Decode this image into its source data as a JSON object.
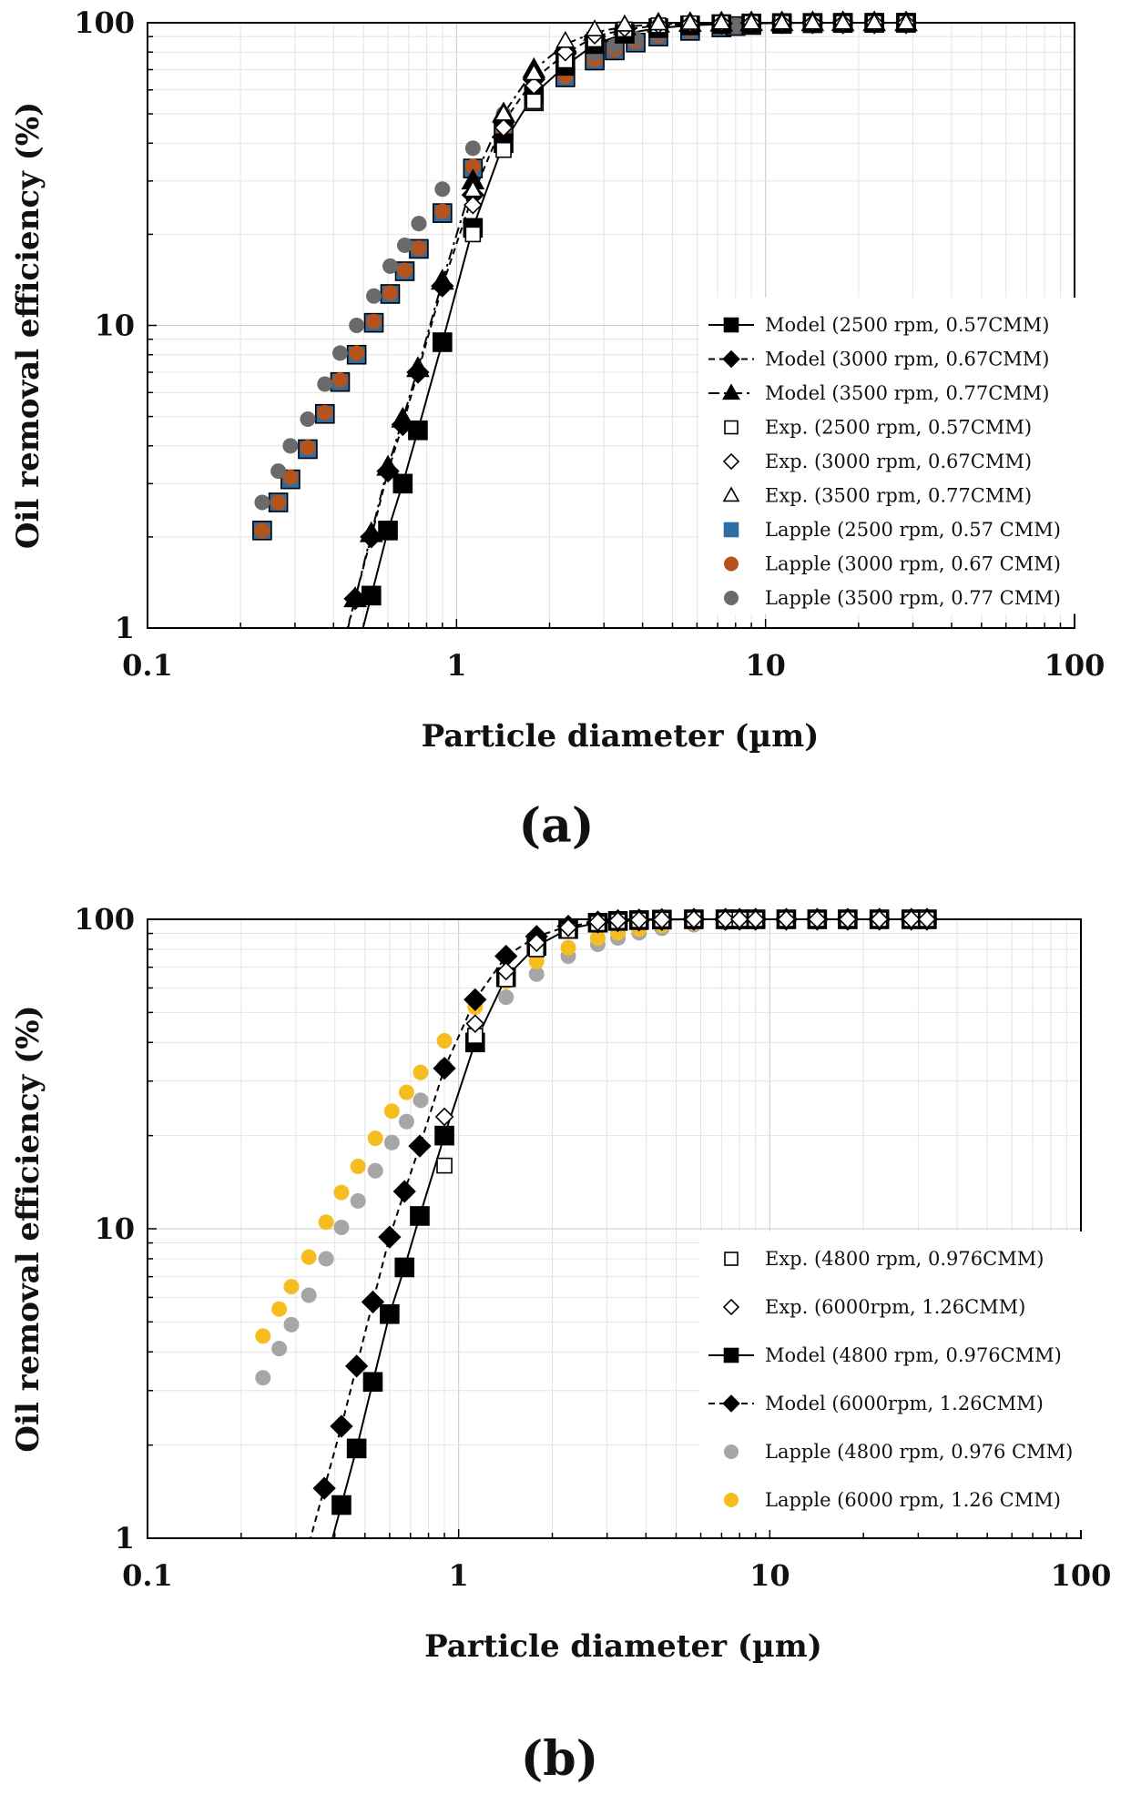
{
  "chart_data": [
    {
      "type": "scatter",
      "panel_label": "(a)",
      "xlabel": "Particle diameter (µm)",
      "ylabel": "Oil removal efficiency (%)",
      "x_scale": "log",
      "y_scale": "log",
      "xlim": [
        0.1,
        100
      ],
      "ylim": [
        1,
        100
      ],
      "x_ticks": [
        "0.1",
        "1",
        "10",
        "100"
      ],
      "y_ticks": [
        "1",
        "10",
        "100"
      ],
      "grid": true,
      "legend_position": "right-center",
      "series": [
        {
          "name": "Model (2500 rpm, 0.57CMM)",
          "marker": "square",
          "fill": "#000000",
          "line": "solid",
          "color": "#000000",
          "x": [
            0.53,
            0.6,
            0.67,
            0.75,
            0.9,
            1.13,
            1.42,
            1.78,
            2.25,
            2.8,
            3.5,
            4.5,
            5.7,
            7.2,
            9.0,
            11.3,
            14.2,
            17.8,
            22.5,
            28.5
          ],
          "y": [
            1.28,
            2.1,
            3.0,
            4.5,
            8.8,
            21,
            40,
            58,
            72,
            85,
            92,
            96,
            98,
            99,
            99.5,
            99.8,
            99.9,
            100,
            100,
            100
          ]
        },
        {
          "name": "Model (3000 rpm, 0.67CMM)",
          "marker": "diamond",
          "fill": "#000000",
          "line": "dashed",
          "color": "#000000",
          "x": [
            0.47,
            0.53,
            0.6,
            0.67,
            0.75,
            0.9,
            1.13,
            1.42,
            1.78,
            2.25,
            2.8,
            3.5,
            4.5,
            5.7,
            7.2,
            9.0,
            11.3,
            14.2,
            17.8,
            22.5,
            28.5
          ],
          "y": [
            1.25,
            2.0,
            3.3,
            4.7,
            7.0,
            13.5,
            27,
            47,
            65,
            79,
            90,
            95,
            98,
            99,
            99.5,
            99.8,
            100,
            100,
            100,
            100,
            100
          ]
        },
        {
          "name": "Model (3500 rpm, 0.77CMM)",
          "marker": "triangle",
          "fill": "#000000",
          "line": "dashdot",
          "color": "#000000",
          "x": [
            0.47,
            0.53,
            0.6,
            0.67,
            0.75,
            0.9,
            1.13,
            1.42,
            1.78,
            2.25,
            2.8,
            3.5,
            4.5,
            5.7,
            7.2,
            9.0,
            11.3,
            14.2,
            17.8,
            22.5,
            28.5
          ],
          "y": [
            1.25,
            2.05,
            3.4,
            4.9,
            7.2,
            14,
            30,
            50,
            70,
            85,
            93,
            97,
            99,
            99.5,
            99.8,
            100,
            100,
            100,
            100,
            100,
            100
          ]
        },
        {
          "name": "Exp. (2500 rpm, 0.57CMM)",
          "marker": "square",
          "fill": "none",
          "line": "none",
          "color": "#000000",
          "x": [
            1.13,
            1.42,
            1.78,
            2.25,
            2.8,
            3.5,
            4.5,
            5.7,
            7.2,
            9.0,
            11.3,
            14.2,
            17.8,
            22.5,
            28.5
          ],
          "y": [
            20,
            38,
            55,
            75,
            88,
            95,
            98,
            99.5,
            99.8,
            100,
            100,
            100,
            100,
            100,
            100
          ]
        },
        {
          "name": "Exp. (3000 rpm, 0.67CMM)",
          "marker": "diamond",
          "fill": "none",
          "line": "none",
          "color": "#000000",
          "x": [
            1.13,
            1.42,
            1.78,
            2.25,
            2.8,
            3.5,
            4.5,
            5.7,
            7.2,
            9.0,
            11.3,
            14.2,
            17.8,
            22.5,
            28.5
          ],
          "y": [
            25,
            45,
            62,
            80,
            91,
            96,
            98.5,
            99.5,
            99.8,
            100,
            100,
            100,
            100,
            100,
            100
          ]
        },
        {
          "name": "Exp. (3500 rpm, 0.77CMM)",
          "marker": "triangle",
          "fill": "none",
          "line": "none",
          "color": "#000000",
          "x": [
            1.13,
            1.42,
            1.78,
            2.25,
            2.8,
            3.5,
            4.5,
            5.7,
            7.2,
            9.0,
            11.3,
            14.2,
            17.8,
            22.5,
            28.5
          ],
          "y": [
            28,
            50,
            68,
            87,
            95,
            98.5,
            99.5,
            99.8,
            100,
            100,
            100,
            100,
            100,
            100,
            100
          ]
        },
        {
          "name": "Lapple (2500 rpm, 0.57 CMM)",
          "marker": "square",
          "fill": "#2e6da4",
          "line": "none",
          "color": "#2e6da4",
          "x": [
            0.235,
            0.265,
            0.29,
            0.33,
            0.375,
            0.42,
            0.475,
            0.54,
            0.61,
            0.68,
            0.755,
            0.9,
            1.13,
            1.42,
            1.78,
            2.25,
            2.8,
            3.25,
            3.8,
            4.5,
            5.7,
            7.2,
            8.0,
            9.0,
            11.3,
            14.2,
            17.8,
            22.5,
            28.5
          ],
          "y": [
            2.1,
            2.6,
            3.1,
            3.9,
            5.1,
            6.5,
            8.0,
            10.2,
            12.7,
            15.1,
            17.9,
            23.5,
            33,
            44,
            55,
            66,
            75,
            81,
            86,
            90,
            94,
            96.5,
            97.5,
            98.3,
            99.1,
            99.6,
            99.8,
            99.9,
            100
          ]
        },
        {
          "name": "Lapple (3000 rpm, 0.67 CMM)",
          "marker": "circle",
          "fill": "#b5531c",
          "line": "none",
          "color": "#b5531c",
          "x": [
            0.235,
            0.265,
            0.29,
            0.33,
            0.375,
            0.42,
            0.475,
            0.54,
            0.61,
            0.68,
            0.755,
            0.9,
            1.13,
            1.42,
            1.78,
            2.25,
            2.8,
            3.25,
            3.8,
            4.5,
            5.7,
            7.2,
            8.0,
            9.0,
            11.3,
            14.2,
            17.8,
            22.5,
            28.5
          ],
          "y": [
            2.1,
            2.6,
            3.15,
            3.95,
            5.15,
            6.6,
            8.1,
            10.3,
            12.8,
            15.2,
            18.0,
            23.8,
            33.5,
            44.5,
            55.5,
            66.5,
            75.5,
            81.5,
            86.5,
            90.5,
            94.2,
            96.6,
            97.6,
            98.4,
            99.2,
            99.6,
            99.8,
            99.9,
            100
          ]
        },
        {
          "name": "Lapple (3500 rpm, 0.77 CMM)",
          "marker": "circle",
          "fill": "#6a6a6a",
          "line": "none",
          "color": "#6a6a6a",
          "x": [
            0.235,
            0.265,
            0.29,
            0.33,
            0.375,
            0.42,
            0.475,
            0.54,
            0.61,
            0.68,
            0.755,
            0.9,
            1.13,
            1.42,
            1.78,
            2.25,
            2.8,
            3.25,
            3.8,
            4.5,
            5.7,
            7.2,
            8.0,
            9.0,
            11.3,
            14.2,
            17.8,
            22.5,
            28.5
          ],
          "y": [
            2.6,
            3.3,
            4.0,
            4.9,
            6.4,
            8.1,
            10.0,
            12.5,
            15.7,
            18.4,
            21.7,
            28.2,
            38.5,
            50,
            61,
            71,
            79,
            84,
            88.5,
            92,
            95.2,
            97.3,
            98.1,
            98.7,
            99.4,
            99.7,
            99.9,
            100,
            100
          ]
        }
      ]
    },
    {
      "type": "scatter",
      "panel_label": "(b)",
      "xlabel": "Particle diameter (µm)",
      "ylabel": "Oil removal efficiency (%)",
      "x_scale": "log",
      "y_scale": "log",
      "xlim": [
        0.1,
        100
      ],
      "ylim": [
        1,
        100
      ],
      "x_ticks": [
        "0.1",
        "1",
        "10",
        "100"
      ],
      "y_ticks": [
        "1",
        "10",
        "100"
      ],
      "grid": true,
      "legend_position": "right-center",
      "series": [
        {
          "name": "Exp. (4800 rpm, 0.976CMM)",
          "marker": "square",
          "fill": "none",
          "line": "none",
          "color": "#000000",
          "x": [
            0.9,
            1.13,
            1.42,
            1.78,
            2.25,
            2.8,
            3.25,
            3.8,
            4.5,
            5.7,
            7.2,
            8.0,
            9.0,
            11.3,
            14.2,
            17.8,
            22.5,
            28.5,
            32
          ],
          "y": [
            16,
            42,
            64,
            80,
            92,
            97,
            98.5,
            99.3,
            99.7,
            100,
            100,
            100,
            100,
            100,
            100,
            100,
            100,
            100,
            100
          ]
        },
        {
          "name": "Exp. (6000rpm, 1.26CMM)",
          "marker": "diamond",
          "fill": "none",
          "line": "none",
          "color": "#000000",
          "x": [
            0.9,
            1.13,
            1.42,
            1.78,
            2.25,
            2.8,
            3.25,
            3.8,
            4.5,
            5.7,
            7.2,
            8.0,
            9.0,
            11.3,
            14.2,
            17.8,
            22.5,
            28.5,
            32
          ],
          "y": [
            23,
            46,
            68,
            84,
            94,
            98,
            99,
            99.5,
            99.8,
            100,
            100,
            100,
            100,
            100,
            100,
            100,
            100,
            100,
            100
          ]
        },
        {
          "name": "Model (4800 rpm, 0.976CMM)",
          "marker": "square",
          "fill": "#000000",
          "line": "solid",
          "color": "#000000",
          "x": [
            0.42,
            0.47,
            0.53,
            0.6,
            0.67,
            0.75,
            0.9,
            1.13,
            1.42,
            1.78,
            2.25,
            2.8,
            3.25,
            3.8,
            4.5,
            5.7,
            7.2,
            8.0,
            9.0,
            11.3,
            14.2,
            17.8,
            22.5,
            28.5,
            32
          ],
          "y": [
            1.28,
            1.95,
            3.2,
            5.3,
            7.5,
            11,
            20,
            40,
            65,
            82,
            93,
            97.5,
            98.8,
            99.4,
            99.8,
            100,
            100,
            100,
            100,
            100,
            100,
            100,
            100,
            100,
            100
          ]
        },
        {
          "name": "Model (6000rpm, 1.26CMM)",
          "marker": "diamond",
          "fill": "#000000",
          "line": "dashed",
          "color": "#000000",
          "x": [
            0.37,
            0.42,
            0.47,
            0.53,
            0.6,
            0.67,
            0.75,
            0.9,
            1.13,
            1.42,
            1.78,
            2.25,
            2.8,
            3.25,
            3.8,
            4.5,
            5.7,
            7.2,
            8.0,
            9.0,
            11.3,
            14.2,
            17.8,
            22.5,
            28.5,
            32
          ],
          "y": [
            1.45,
            2.3,
            3.6,
            5.8,
            9.4,
            13.2,
            18.5,
            33,
            55,
            76,
            88,
            95,
            98,
            99,
            99.5,
            99.8,
            100,
            100,
            100,
            100,
            100,
            100,
            100,
            100,
            100,
            100
          ]
        },
        {
          "name": "Lapple (4800 rpm, 0.976 CMM)",
          "marker": "circle",
          "fill": "#a6a6a6",
          "line": "none",
          "color": "#a6a6a6",
          "x": [
            0.235,
            0.265,
            0.29,
            0.33,
            0.375,
            0.42,
            0.475,
            0.54,
            0.61,
            0.68,
            0.755,
            0.9,
            1.13,
            1.42,
            1.78,
            2.25,
            2.8,
            3.25,
            3.8,
            4.5,
            5.7,
            7.2,
            8.0,
            9.0,
            11.3,
            14.2,
            17.8,
            22.5,
            28.5,
            32
          ],
          "y": [
            3.3,
            4.1,
            4.9,
            6.1,
            8.0,
            10.1,
            12.3,
            15.4,
            19.0,
            22.2,
            26.0,
            33.5,
            44,
            56,
            66.5,
            76,
            83,
            87,
            90.5,
            93.5,
            96,
            97.7,
            98.4,
            98.9,
            99.5,
            99.8,
            99.9,
            100,
            100,
            100
          ]
        },
        {
          "name": "Lapple (6000 rpm, 1.26 CMM)",
          "marker": "circle",
          "fill": "#f5bd1f",
          "line": "none",
          "color": "#f5bd1f",
          "x": [
            0.235,
            0.265,
            0.29,
            0.33,
            0.375,
            0.42,
            0.475,
            0.54,
            0.61,
            0.68,
            0.755,
            0.9,
            1.13,
            1.42,
            1.78,
            2.25,
            2.8,
            3.25,
            3.8,
            4.5,
            5.7,
            7.2,
            8.0,
            9.0,
            11.3,
            14.2,
            17.8,
            22.5,
            28.5,
            32
          ],
          "y": [
            4.5,
            5.5,
            6.5,
            8.1,
            10.5,
            13.1,
            15.9,
            19.6,
            24.0,
            27.6,
            32.0,
            40.5,
            52,
            63,
            73,
            81,
            87,
            90.5,
            93,
            95.5,
            97.3,
            98.5,
            99,
            99.3,
            99.7,
            99.9,
            100,
            100,
            100,
            100
          ]
        }
      ]
    }
  ]
}
